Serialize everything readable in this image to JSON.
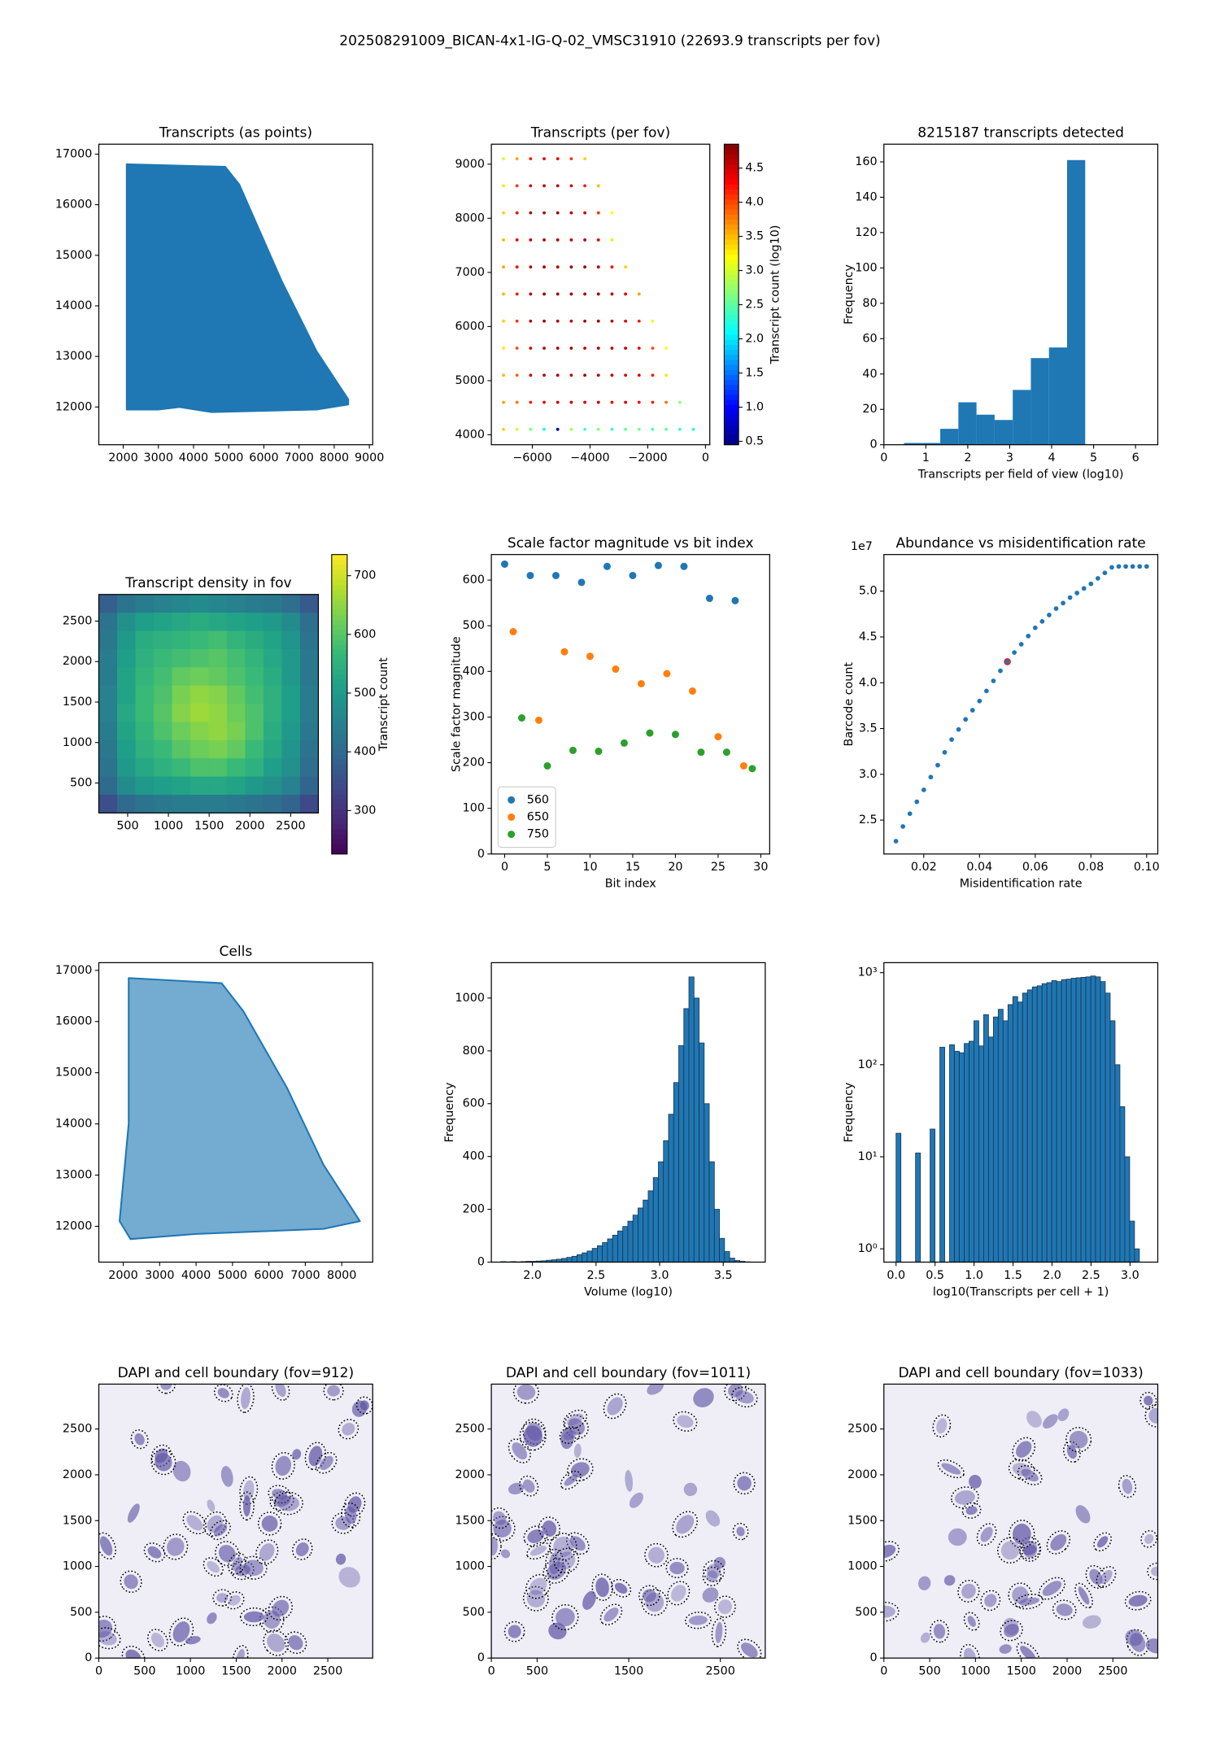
{
  "title": "202508291009_BICAN-4x1-IG-Q-02_VMSC31910 (22693.9 transcripts per fov)",
  "chart_data": [
    {
      "type": "region",
      "title": "Transcripts (as points)",
      "color": "#1f77b4",
      "x": [
        2100,
        4900,
        5300,
        6500,
        7500,
        8400,
        8400,
        7500,
        4500,
        3600,
        3000,
        2100
      ],
      "y": [
        16800,
        16750,
        16400,
        14500,
        13100,
        12150,
        12050,
        11950,
        11900,
        12000,
        11950,
        11950
      ],
      "xlim": [
        1306,
        9095
      ],
      "ylim": [
        11254,
        17197
      ],
      "xticks": [
        2000,
        3000,
        4000,
        5000,
        6000,
        7000,
        8000,
        9000
      ],
      "yticks": [
        12000,
        13000,
        14000,
        15000,
        16000,
        17000
      ]
    },
    {
      "type": "scatter",
      "title": "Transcripts (per fov)",
      "colormap": "jet",
      "colorbar_label": "Transcript count (log10)",
      "x": [
        -7000,
        -6530,
        -6060,
        -5590,
        -5120,
        -4650,
        -4180,
        -3710,
        -3240,
        -2770,
        -2300,
        -1830,
        -1360,
        -890,
        -420
      ],
      "y": [
        4100,
        4600,
        5100,
        5600,
        6100,
        6600,
        7100,
        7600,
        8100,
        8600,
        9100
      ],
      "values": [
        [
          3.4,
          3.0,
          2.6,
          2.2,
          0.6,
          2.8,
          2.4,
          2.7,
          2.3,
          2.5,
          2.6,
          2.4,
          2.5,
          2.3,
          2.2
        ],
        [
          3.6,
          3.8,
          4.2,
          4.4,
          4.5,
          4.6,
          4.5,
          4.6,
          4.4,
          4.5,
          4.3,
          4.2,
          3.8,
          2.7,
          null
        ],
        [
          3.5,
          3.9,
          4.5,
          4.6,
          4.7,
          4.6,
          4.7,
          4.6,
          4.6,
          4.5,
          4.5,
          4.2,
          3.3,
          null,
          null
        ],
        [
          3.3,
          4.0,
          4.5,
          4.6,
          4.7,
          4.7,
          4.6,
          4.7,
          4.6,
          4.6,
          4.4,
          4.0,
          3.2,
          null,
          null
        ],
        [
          3.4,
          4.1,
          4.6,
          4.7,
          4.7,
          4.6,
          4.7,
          4.7,
          4.6,
          4.5,
          4.2,
          3.1,
          null,
          null,
          null
        ],
        [
          3.5,
          4.2,
          4.6,
          4.7,
          4.7,
          4.7,
          4.6,
          4.7,
          4.6,
          4.4,
          3.6,
          null,
          null,
          null,
          null
        ],
        [
          3.6,
          4.3,
          4.6,
          4.7,
          4.6,
          4.7,
          4.7,
          4.6,
          4.3,
          3.4,
          null,
          null,
          null,
          null,
          null
        ],
        [
          3.5,
          4.4,
          4.6,
          4.7,
          4.7,
          4.6,
          4.6,
          4.4,
          3.3,
          null,
          null,
          null,
          null,
          null,
          null
        ],
        [
          3.4,
          4.3,
          4.6,
          4.6,
          4.7,
          4.6,
          4.5,
          4.1,
          3.2,
          null,
          null,
          null,
          null,
          null,
          null
        ],
        [
          3.3,
          4.1,
          4.5,
          4.6,
          4.6,
          4.5,
          4.2,
          3.5,
          null,
          null,
          null,
          null,
          null,
          null,
          null
        ],
        [
          3.0,
          3.6,
          4.2,
          4.4,
          4.4,
          4.1,
          3.4,
          null,
          null,
          null,
          null,
          null,
          null,
          null,
          null
        ]
      ],
      "xlim": [
        -7420,
        150
      ],
      "ylim": [
        3816,
        9369
      ],
      "xticks": [
        {
          "value": -6000,
          "label": "−6000"
        },
        {
          "value": -4000,
          "label": "−4000"
        },
        {
          "value": -2000,
          "label": "−2000"
        },
        0
      ],
      "yticks": [
        4000,
        5000,
        6000,
        7000,
        8000,
        9000
      ],
      "clim": [
        0.45,
        4.85
      ],
      "cticks": [
        0.5,
        {
          "value": 1,
          "label": "1.0"
        },
        1.5,
        {
          "value": 2,
          "label": "2.0"
        },
        2.5,
        {
          "value": 3,
          "label": "3.0"
        },
        3.5,
        {
          "value": 4,
          "label": "4.0"
        },
        4.5
      ]
    },
    {
      "type": "histogram",
      "title": "8215187 transcripts detected",
      "color": "#1f77b4",
      "x_label": "Transcripts per field of view (log10)",
      "y_label": "Frequency",
      "bins": [
        0.48,
        0.912,
        1.344,
        1.776,
        2.208,
        2.64,
        3.072,
        3.504,
        3.936,
        4.368,
        4.8
      ],
      "values": [
        1,
        1,
        9,
        24,
        17,
        14,
        31,
        49,
        55,
        161
      ],
      "xlim": [
        0,
        6.53
      ],
      "ylim": [
        0,
        170
      ],
      "xticks": [
        0,
        1,
        2,
        3,
        4,
        5,
        6
      ],
      "yticks": [
        0,
        20,
        40,
        60,
        80,
        100,
        120,
        140,
        160
      ]
    },
    {
      "type": "heatmap",
      "title": "Transcript density in fov",
      "colormap": "viridis",
      "colorbar_label": "Transcript count",
      "values": [
        [
          380,
          420,
          440,
          450,
          460,
          470,
          460,
          450,
          440,
          430,
          410,
          370
        ],
        [
          420,
          480,
          510,
          520,
          530,
          540,
          530,
          520,
          510,
          500,
          470,
          410
        ],
        [
          430,
          500,
          540,
          550,
          560,
          570,
          580,
          560,
          540,
          520,
          490,
          420
        ],
        [
          440,
          510,
          550,
          570,
          580,
          590,
          600,
          580,
          560,
          530,
          500,
          430
        ],
        [
          440,
          520,
          560,
          580,
          610,
          620,
          610,
          590,
          570,
          540,
          500,
          430
        ],
        [
          450,
          520,
          570,
          590,
          630,
          650,
          640,
          610,
          580,
          550,
          510,
          440
        ],
        [
          450,
          530,
          570,
          600,
          640,
          660,
          650,
          620,
          590,
          550,
          510,
          440
        ],
        [
          440,
          520,
          560,
          590,
          620,
          640,
          650,
          630,
          590,
          540,
          500,
          430
        ],
        [
          430,
          510,
          550,
          570,
          600,
          620,
          630,
          610,
          570,
          530,
          490,
          420
        ],
        [
          420,
          500,
          530,
          550,
          570,
          590,
          590,
          570,
          550,
          510,
          480,
          410
        ],
        [
          400,
          470,
          500,
          510,
          520,
          530,
          530,
          520,
          500,
          480,
          450,
          390
        ],
        [
          350,
          400,
          420,
          430,
          440,
          440,
          440,
          430,
          420,
          410,
          390,
          340
        ]
      ],
      "xlim": [
        146,
        2840
      ],
      "ylim": [
        130,
        2829
      ],
      "xticks": [
        500,
        1000,
        1500,
        2000,
        2500
      ],
      "yticks": [
        500,
        1000,
        1500,
        2000,
        2500
      ],
      "clim": [
        226,
        736
      ],
      "cticks": [
        300,
        400,
        500,
        600,
        700
      ]
    },
    {
      "type": "scatter",
      "title": "Scale factor magnitude vs bit index",
      "x_label": "Bit index",
      "y_label": "Scale factor magnitude",
      "legend": "lower left",
      "series": [
        {
          "name": "560",
          "color": "#1f77b4",
          "x": [
            0,
            3,
            6,
            9,
            12,
            15,
            18,
            21,
            24,
            27
          ],
          "values": [
            635,
            610,
            610,
            595,
            630,
            610,
            632,
            630,
            560,
            555
          ]
        },
        {
          "name": "650",
          "color": "#ff7f0e",
          "x": [
            1,
            4,
            7,
            10,
            13,
            16,
            19,
            22,
            25,
            28
          ],
          "values": [
            487,
            293,
            443,
            433,
            405,
            373,
            395,
            357,
            257,
            193
          ]
        },
        {
          "name": "750",
          "color": "#2ca02c",
          "x": [
            2,
            5,
            8,
            11,
            14,
            17,
            20,
            23,
            26,
            29
          ],
          "values": [
            298,
            193,
            227,
            225,
            243,
            265,
            262,
            223,
            223,
            187
          ]
        }
      ],
      "xlim": [
        -1.56,
        31.04
      ],
      "ylim": [
        0,
        656
      ],
      "xticks": [
        0,
        5,
        10,
        15,
        20,
        25,
        30
      ],
      "yticks": [
        0,
        100,
        200,
        300,
        400,
        500,
        600
      ]
    },
    {
      "type": "scatter",
      "title": "Abundance vs misidentification rate",
      "color": "#1f77b4",
      "x_label": "Misidentification rate",
      "y_label": "Barcode count",
      "y_offset_text": "1e7",
      "x": [
        0.01,
        0.0125,
        0.015,
        0.0175,
        0.02,
        0.0225,
        0.025,
        0.0275,
        0.03,
        0.0325,
        0.035,
        0.0375,
        0.04,
        0.0425,
        0.045,
        0.0475,
        0.05,
        0.0525,
        0.055,
        0.0575,
        0.06,
        0.0625,
        0.065,
        0.0675,
        0.07,
        0.0725,
        0.075,
        0.0775,
        0.08,
        0.0825,
        0.085,
        0.0875,
        0.09,
        0.0925,
        0.095,
        0.0975,
        0.1
      ],
      "values": [
        2.27,
        2.43,
        2.57,
        2.7,
        2.83,
        2.97,
        3.1,
        3.24,
        3.38,
        3.49,
        3.6,
        3.7,
        3.8,
        3.91,
        4.02,
        4.13,
        4.23,
        4.33,
        4.42,
        4.51,
        4.6,
        4.67,
        4.74,
        4.81,
        4.87,
        4.93,
        4.98,
        5.03,
        5.08,
        5.14,
        5.2,
        5.26,
        5.27,
        5.27,
        5.27,
        5.27,
        5.27
      ],
      "highlight": {
        "x": 0.05,
        "value": 4.23,
        "color": "#d62728"
      },
      "xlim": [
        0.00567,
        0.104
      ],
      "ylim": [
        2.13,
        5.4
      ],
      "xticks": [
        0.02,
        0.04,
        0.06,
        0.08,
        {
          "value": 0.1,
          "label": "0.10"
        }
      ],
      "yticks": [
        2.5,
        {
          "value": 3,
          "label": "3.0"
        },
        3.5,
        {
          "value": 4,
          "label": "4.0"
        },
        4.5,
        {
          "value": 5,
          "label": "5.0"
        }
      ]
    },
    {
      "type": "region",
      "title": "Cells",
      "color": "#1f77b4",
      "x": [
        2150,
        4700,
        5300,
        6500,
        7500,
        8500,
        7500,
        4000,
        2200,
        1900,
        2150
      ],
      "y": [
        16850,
        16750,
        16200,
        14700,
        13200,
        12100,
        11950,
        11850,
        11750,
        12100,
        14000
      ],
      "xlim": [
        1330,
        8850
      ],
      "ylim": [
        11300,
        17150
      ],
      "xticks": [
        2000,
        3000,
        4000,
        5000,
        6000,
        7000,
        8000
      ],
      "yticks": [
        12000,
        13000,
        14000,
        15000,
        16000,
        17000
      ]
    },
    {
      "type": "histogram",
      "color": "#1f77b4",
      "edgecolor": "#1b3550",
      "x_label": "Volume (log10)",
      "y_label": "Frequency",
      "bins": [
        1.75,
        1.79,
        1.83,
        1.87,
        1.91,
        1.95,
        1.99,
        2.03,
        2.07,
        2.11,
        2.15,
        2.19,
        2.23,
        2.27,
        2.31,
        2.35,
        2.39,
        2.43,
        2.47,
        2.51,
        2.55,
        2.59,
        2.63,
        2.67,
        2.71,
        2.75,
        2.79,
        2.83,
        2.87,
        2.91,
        2.95,
        2.99,
        3.03,
        3.07,
        3.11,
        3.15,
        3.19,
        3.23,
        3.27,
        3.31,
        3.35,
        3.39,
        3.43,
        3.47,
        3.51,
        3.55,
        3.59,
        3.63,
        3.67,
        3.71,
        3.75
      ],
      "values": [
        2,
        1,
        2,
        1,
        2,
        3,
        3,
        4,
        5,
        7,
        9,
        11,
        14,
        18,
        22,
        28,
        35,
        42,
        52,
        62,
        74,
        88,
        102,
        118,
        135,
        155,
        178,
        205,
        235,
        270,
        320,
        380,
        460,
        560,
        680,
        820,
        960,
        1080,
        1000,
        830,
        600,
        380,
        200,
        90,
        40,
        15,
        6,
        3,
        1,
        0
      ],
      "xlim": [
        1.677,
        3.83
      ],
      "ylim": [
        0,
        1134
      ],
      "xticks": [
        {
          "value": 2,
          "label": "2.0"
        },
        2.5,
        {
          "value": 3,
          "label": "3.0"
        },
        3.5
      ],
      "yticks": [
        0,
        200,
        400,
        600,
        800,
        1000
      ]
    },
    {
      "type": "histogram",
      "color": "#1f77b4",
      "edgecolor": "#1b3550",
      "yscale": "log",
      "x_label": "log10(Transcripts per cell + 1)",
      "y_label": "Frequency",
      "bins": [
        0,
        0.0624,
        0.1248,
        0.1872,
        0.2496,
        0.312,
        0.3744,
        0.4368,
        0.4992,
        0.5616,
        0.624,
        0.6864,
        0.7488,
        0.8112,
        0.8736,
        0.936,
        0.9984,
        1.0608,
        1.1232,
        1.1856,
        1.248,
        1.3104,
        1.3728,
        1.4352,
        1.4976,
        1.56,
        1.6224,
        1.6848,
        1.7472,
        1.8096,
        1.872,
        1.9344,
        1.9968,
        2.0592,
        2.1216,
        2.184,
        2.2464,
        2.3088,
        2.3712,
        2.4336,
        2.496,
        2.5584,
        2.6208,
        2.6832,
        2.7456,
        2.808,
        2.8704,
        2.9328,
        2.9952,
        3.0576,
        3.12
      ],
      "values": [
        18,
        0,
        0,
        0,
        11,
        0,
        0,
        20,
        0,
        155,
        0,
        165,
        140,
        135,
        170,
        180,
        300,
        160,
        350,
        200,
        330,
        400,
        300,
        450,
        550,
        480,
        600,
        650,
        700,
        720,
        760,
        780,
        820,
        800,
        840,
        850,
        870,
        880,
        890,
        900,
        920,
        900,
        800,
        600,
        300,
        100,
        35,
        10,
        2,
        1
      ],
      "xlim": [
        -0.156,
        3.356
      ],
      "ylim": [
        0.717,
        1284
      ],
      "xticks": [
        {
          "value": 0,
          "label": "0.0"
        },
        0.5,
        {
          "value": 1,
          "label": "1.0"
        },
        1.5,
        {
          "value": 2,
          "label": "2.0"
        },
        2.5,
        {
          "value": 3,
          "label": "3.0"
        }
      ],
      "yticks": [
        {
          "value": 1,
          "label": "10⁰"
        },
        {
          "value": 10,
          "label": "10¹"
        },
        {
          "value": 100,
          "label": "10²"
        },
        {
          "value": 1000,
          "label": "10³"
        }
      ]
    },
    {
      "type": "image",
      "title": "DAPI and cell boundary (fov=912)",
      "xlim": [
        0,
        2990
      ],
      "ylim": [
        0,
        2990
      ],
      "xticks": [
        0,
        500,
        1000,
        1500,
        2000,
        2500
      ],
      "yticks": [
        0,
        500,
        1000,
        1500,
        2000,
        2500
      ]
    },
    {
      "type": "image",
      "title": "DAPI and cell boundary (fov=1011)",
      "xlim": [
        0,
        2990
      ],
      "ylim": [
        0,
        2990
      ],
      "xticks": [
        0,
        500,
        1500,
        2500
      ],
      "yticks": [
        0,
        500,
        1000,
        1500,
        2000,
        2500
      ]
    },
    {
      "type": "image",
      "title": "DAPI and cell boundary (fov=1033)",
      "xlim": [
        0,
        2990
      ],
      "ylim": [
        0,
        2990
      ],
      "xticks": [
        0,
        500,
        1000,
        1500,
        2000,
        2500
      ],
      "yticks": [
        0,
        500,
        1000,
        1500,
        2000,
        2500
      ]
    }
  ]
}
